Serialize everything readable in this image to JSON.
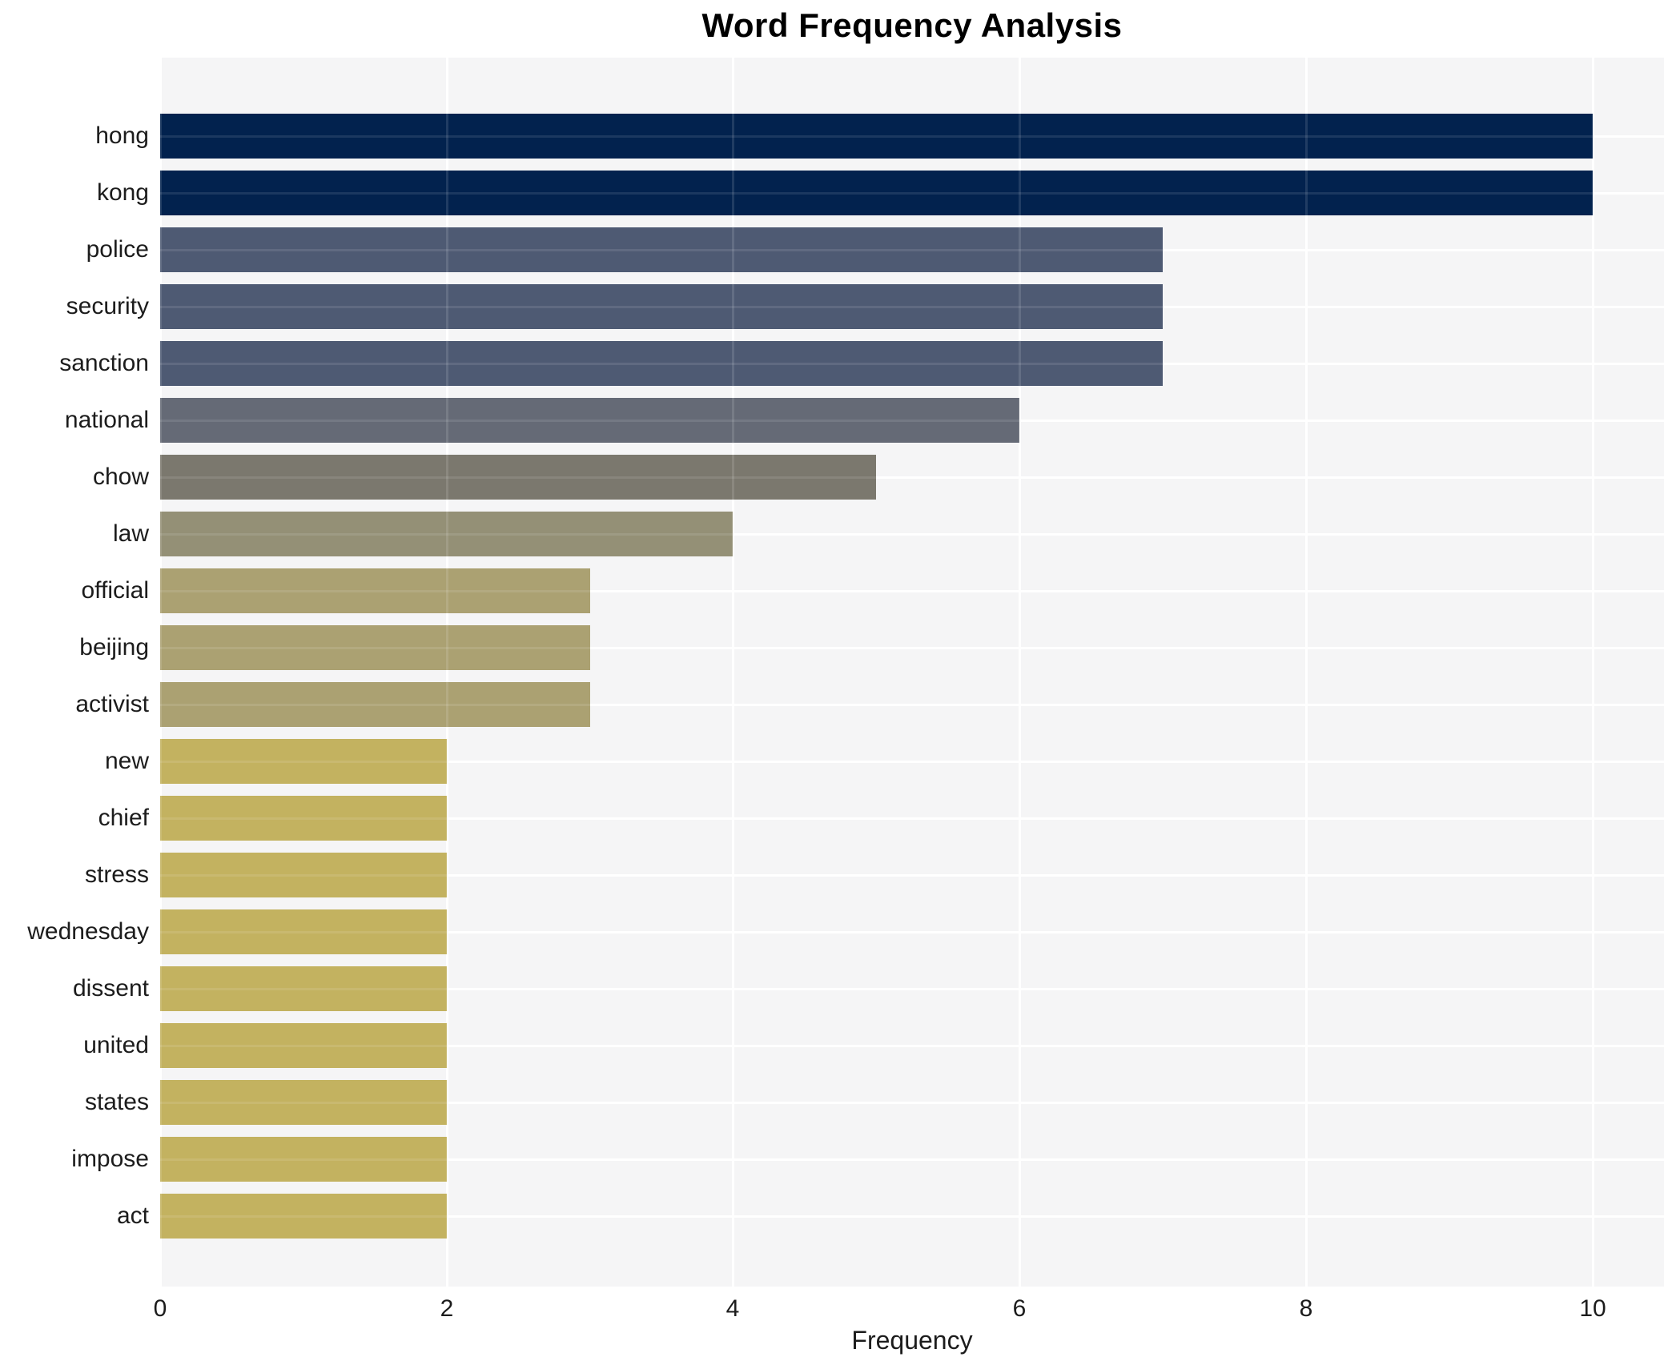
{
  "chart_data": {
    "type": "bar",
    "orientation": "horizontal",
    "title": "Word Frequency Analysis",
    "xlabel": "Frequency",
    "ylabel": "",
    "categories": [
      "hong",
      "kong",
      "police",
      "security",
      "sanction",
      "national",
      "chow",
      "law",
      "official",
      "beijing",
      "activist",
      "new",
      "chief",
      "stress",
      "wednesday",
      "dissent",
      "united",
      "states",
      "impose",
      "act"
    ],
    "values": [
      10,
      10,
      7,
      7,
      7,
      6,
      5,
      4,
      3,
      3,
      3,
      2,
      2,
      2,
      2,
      2,
      2,
      2,
      2,
      2
    ],
    "bar_colors": [
      "#02224e",
      "#02224e",
      "#4e5a73",
      "#4e5a73",
      "#4e5a73",
      "#656a76",
      "#7b786e",
      "#949076",
      "#aba172",
      "#aba172",
      "#aba172",
      "#c3b260",
      "#c3b260",
      "#c3b260",
      "#c3b260",
      "#c3b260",
      "#c3b260",
      "#c3b260",
      "#c3b260",
      "#c3b260"
    ],
    "color_by_value": {
      "10": "#02224e",
      "7": "#4e5a73",
      "6": "#656a76",
      "5": "#7b786e",
      "4": "#949076",
      "3": "#aba172",
      "2": "#c3b260"
    },
    "xticks": [
      0,
      2,
      4,
      6,
      8,
      10
    ],
    "xlim": [
      0,
      10.5
    ],
    "grid": true,
    "legend": false,
    "colors": {
      "plot_background": "#f5f5f6",
      "gridline": "#ffffff",
      "text": "#1c1c1c",
      "title": "#000000",
      "page_background": "#ffffff"
    }
  }
}
